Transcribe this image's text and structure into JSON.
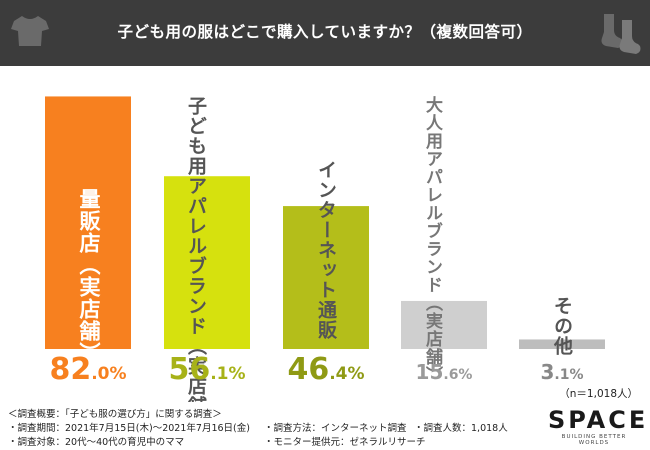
{
  "header": {
    "title": "子ども用の服はどこで購入していますか？（複数回答可）"
  },
  "icons": {
    "left": "tshirt-icon",
    "right": "socks-icon"
  },
  "chart_data": {
    "type": "bar",
    "title": "子ども用の服はどこで購入していますか？（複数回答可）",
    "categories": [
      "量販店（実店舗）",
      "子ども用アパレルブランド（実店舗）",
      "インターネット通販",
      "大人用アパレルブランド（実店舗）",
      "その他"
    ],
    "series": [
      {
        "values": [
          82.0,
          56.1,
          46.4,
          15.6,
          3.1
        ]
      }
    ],
    "value_labels": [
      {
        "int": "82",
        "dec": ".0%"
      },
      {
        "int": "56",
        "dec": ".1%"
      },
      {
        "int": "46",
        "dec": ".4%"
      },
      {
        "int": "15",
        "dec": ".6%"
      },
      {
        "int": "3",
        "dec": ".1%"
      }
    ],
    "colors": [
      "#f7801f",
      "#d6e10e",
      "#b4be1a",
      "#cfcfcf",
      "#bdbdbd"
    ],
    "label_colors": [
      "#ffffff",
      "#555555",
      "#555555",
      "#777777",
      "#555555"
    ],
    "value_colors": [
      "#f7801f",
      "#a7b218",
      "#8f9a14",
      "#9a9a9a",
      "#888888"
    ],
    "ylim": [
      0,
      100
    ],
    "grid": false,
    "legend": "none"
  },
  "sample_size": "（n＝1,018人）",
  "notes": {
    "summary": "＜調査概要：「子ども服の選び方」に関する調査＞",
    "period": "・調査期間：2021年7月15日(木)～2021年7月16日(金)",
    "method": "・調査方法：インターネット調査",
    "count": "・調査人数：1,018人",
    "target": "・調査対象：20代～40代の育児中のママ",
    "provider": "・モニター提供元：ゼネラルリサーチ"
  },
  "logo": {
    "text": "SPACE",
    "sub": "BUILDING BETTER WORLDS"
  }
}
